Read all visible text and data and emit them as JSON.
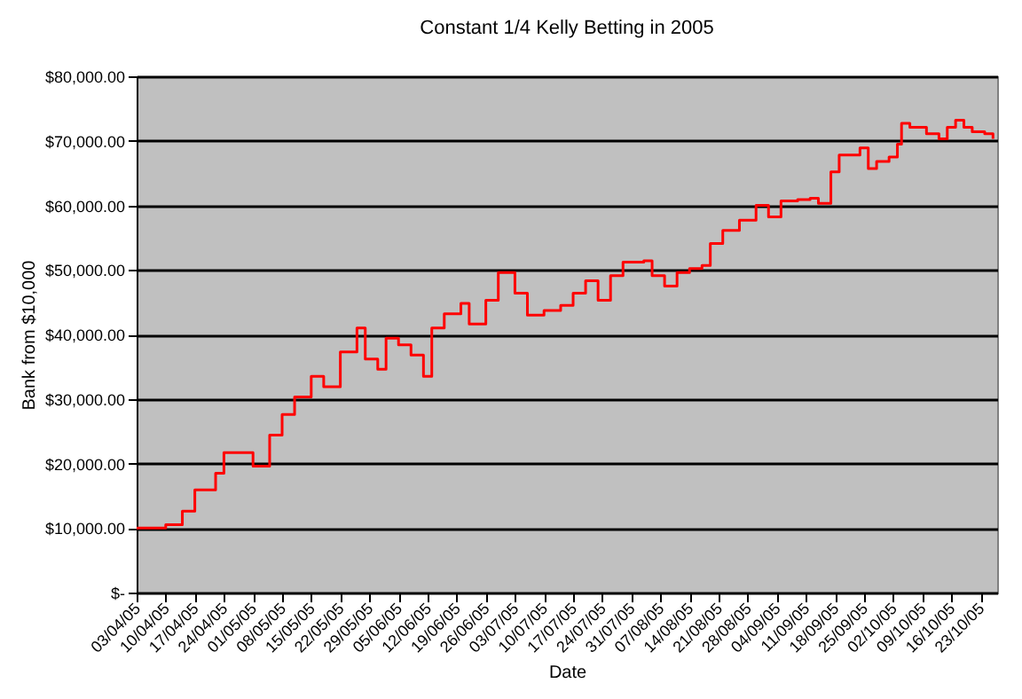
{
  "chart_data": {
    "type": "step",
    "title": "Constant 1/4 Kelly Betting in 2005",
    "xlabel": "Date",
    "ylabel": "Bank from $10,000",
    "x": [
      "2005-04-03",
      "2005-04-10",
      "2005-04-14",
      "2005-04-17",
      "2005-04-22",
      "2005-04-24",
      "2005-05-01",
      "2005-05-05",
      "2005-05-08",
      "2005-05-11",
      "2005-05-15",
      "2005-05-18",
      "2005-05-22",
      "2005-05-26",
      "2005-05-28",
      "2005-05-31",
      "2005-06-02",
      "2005-06-05",
      "2005-06-08",
      "2005-06-11",
      "2005-06-13",
      "2005-06-16",
      "2005-06-20",
      "2005-06-22",
      "2005-06-26",
      "2005-06-29",
      "2005-07-03",
      "2005-07-06",
      "2005-07-10",
      "2005-07-14",
      "2005-07-17",
      "2005-07-20",
      "2005-07-23",
      "2005-07-26",
      "2005-07-29",
      "2005-08-03",
      "2005-08-05",
      "2005-08-08",
      "2005-08-11",
      "2005-08-14",
      "2005-08-17",
      "2005-08-19",
      "2005-08-22",
      "2005-08-26",
      "2005-08-30",
      "2005-09-02",
      "2005-09-05",
      "2005-09-09",
      "2005-09-12",
      "2005-09-14",
      "2005-09-17",
      "2005-09-19",
      "2005-09-22",
      "2005-09-24",
      "2005-09-26",
      "2005-09-28",
      "2005-10-01",
      "2005-10-03",
      "2005-10-04",
      "2005-10-06",
      "2005-10-10",
      "2005-10-13",
      "2005-10-15",
      "2005-10-17",
      "2005-10-19",
      "2005-10-21",
      "2005-10-24",
      "2005-10-26"
    ],
    "series": [
      {
        "color": "#ff0000",
        "values": [
          10000,
          10500,
          12600,
          15900,
          18500,
          21700,
          19600,
          24400,
          27600,
          30300,
          33500,
          31900,
          37300,
          41000,
          36200,
          34600,
          39400,
          38400,
          36800,
          33500,
          41000,
          43200,
          44800,
          41600,
          45300,
          49600,
          46400,
          43000,
          43700,
          44500,
          46400,
          48300,
          45300,
          49100,
          51200,
          51400,
          49100,
          47500,
          49600,
          50200,
          50700,
          54100,
          56100,
          57700,
          60000,
          58200,
          60700,
          60900,
          61100,
          60300,
          65200,
          67800,
          67800,
          68900,
          65700,
          66800,
          67500,
          69500,
          72700,
          72100,
          71100,
          70300,
          72100,
          73200,
          72100,
          71400,
          71100,
          70300
        ]
      }
    ],
    "xlim": [
      "2005-04-03",
      "2005-10-27"
    ],
    "xticks": [
      {
        "value": "2005-04-03",
        "label": "03/04/05"
      },
      {
        "value": "2005-04-10",
        "label": "10/04/05"
      },
      {
        "value": "2005-04-17",
        "label": "17/04/05"
      },
      {
        "value": "2005-04-24",
        "label": "24/04/05"
      },
      {
        "value": "2005-05-01",
        "label": "01/05/05"
      },
      {
        "value": "2005-05-08",
        "label": "08/05/05"
      },
      {
        "value": "2005-05-15",
        "label": "15/05/05"
      },
      {
        "value": "2005-05-22",
        "label": "22/05/05"
      },
      {
        "value": "2005-05-29",
        "label": "29/05/05"
      },
      {
        "value": "2005-06-05",
        "label": "05/06/05"
      },
      {
        "value": "2005-06-12",
        "label": "12/06/05"
      },
      {
        "value": "2005-06-19",
        "label": "19/06/05"
      },
      {
        "value": "2005-06-26",
        "label": "26/06/05"
      },
      {
        "value": "2005-07-03",
        "label": "03/07/05"
      },
      {
        "value": "2005-07-10",
        "label": "10/07/05"
      },
      {
        "value": "2005-07-17",
        "label": "17/07/05"
      },
      {
        "value": "2005-07-24",
        "label": "24/07/05"
      },
      {
        "value": "2005-07-31",
        "label": "31/07/05"
      },
      {
        "value": "2005-08-07",
        "label": "07/08/05"
      },
      {
        "value": "2005-08-14",
        "label": "14/08/05"
      },
      {
        "value": "2005-08-21",
        "label": "21/08/05"
      },
      {
        "value": "2005-08-28",
        "label": "28/08/05"
      },
      {
        "value": "2005-09-04",
        "label": "04/09/05"
      },
      {
        "value": "2005-09-11",
        "label": "11/09/05"
      },
      {
        "value": "2005-09-18",
        "label": "18/09/05"
      },
      {
        "value": "2005-09-25",
        "label": "25/09/05"
      },
      {
        "value": "2005-10-02",
        "label": "02/10/05"
      },
      {
        "value": "2005-10-09",
        "label": "09/10/05"
      },
      {
        "value": "2005-10-16",
        "label": "16/10/05"
      },
      {
        "value": "2005-10-23",
        "label": "23/10/05"
      }
    ],
    "ylim": [
      0,
      80000
    ],
    "yticks": [
      {
        "value": 0,
        "label": "$-"
      },
      {
        "value": 10000,
        "label": "$10,000.00"
      },
      {
        "value": 20000,
        "label": "$20,000.00"
      },
      {
        "value": 30000,
        "label": "$30,000.00"
      },
      {
        "value": 40000,
        "label": "$40,000.00"
      },
      {
        "value": 50000,
        "label": "$50,000.00"
      },
      {
        "value": 60000,
        "label": "$60,000.00"
      },
      {
        "value": 70000,
        "label": "$70,000.00"
      },
      {
        "value": 80000,
        "label": "$80,000.00"
      }
    ],
    "grid": "y",
    "marker": "none",
    "line_style": "solid"
  }
}
